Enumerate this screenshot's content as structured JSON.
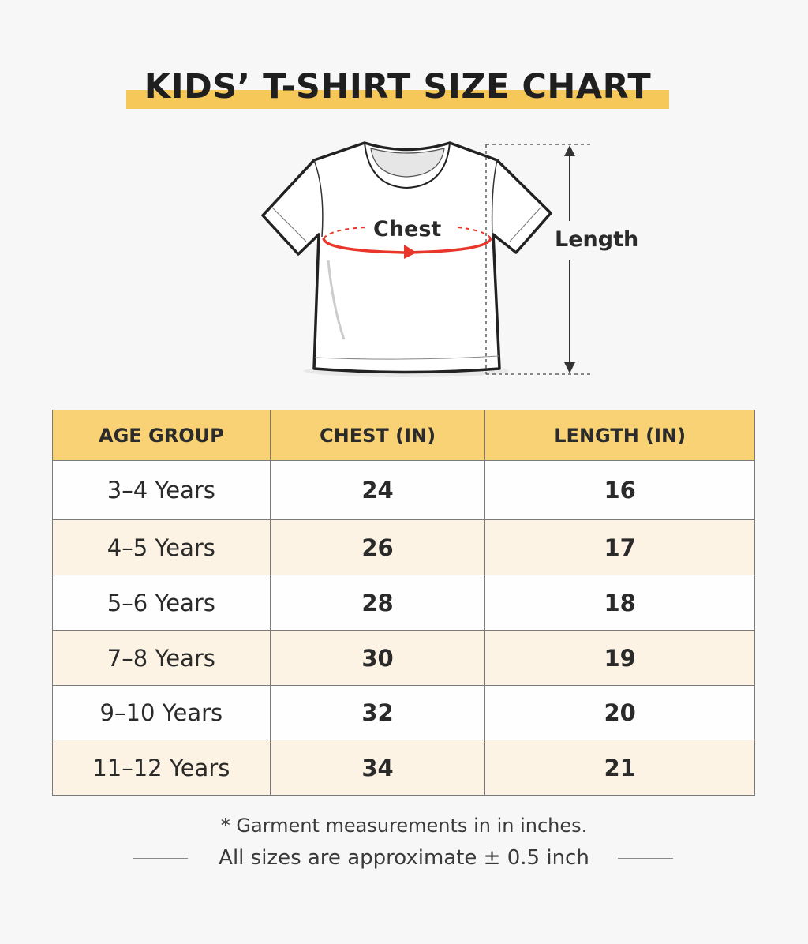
{
  "title": "KIDS’ T-SHIRT SIZE CHART",
  "diagram": {
    "chest_label": "Chest",
    "length_label": "Length",
    "accent_color": "#e8372a",
    "highlight_color": "#f6c85a"
  },
  "table": {
    "headers": [
      "AGE GROUP",
      "CHEST (IN)",
      "LENGTH (IN)"
    ],
    "rows": [
      {
        "age": "3–4 Years",
        "chest": "24",
        "length": "16"
      },
      {
        "age": "4–5 Years",
        "chest": "26",
        "length": "17"
      },
      {
        "age": "5–6 Years",
        "chest": "28",
        "length": "18"
      },
      {
        "age": "7–8 Years",
        "chest": "30",
        "length": "19"
      },
      {
        "age": "9–10 Years",
        "chest": "32",
        "length": "20"
      },
      {
        "age": "11–12 Years",
        "chest": "34",
        "length": "21"
      }
    ]
  },
  "footer": {
    "note": "* Garment measurements in in inches.",
    "approx": "All sizes are approximate ± 0.5 inch"
  }
}
